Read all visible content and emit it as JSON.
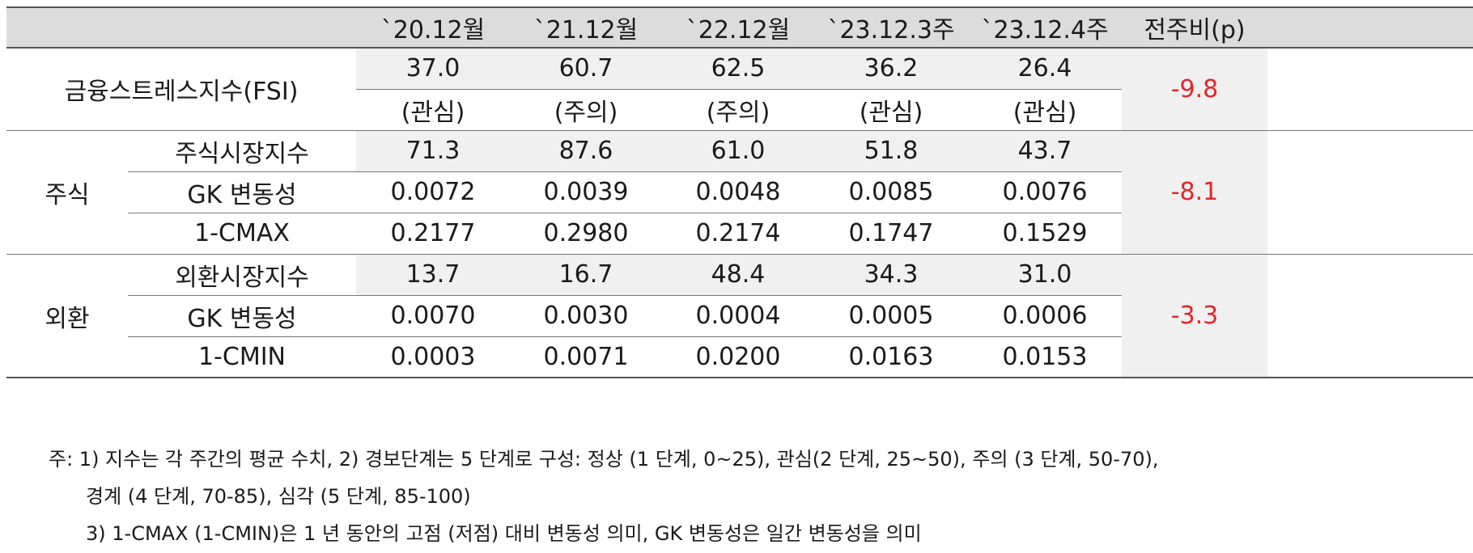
{
  "header": {
    "columns": [
      "`20.12월",
      "`21.12월",
      "`22.12월",
      "`23.12.3주",
      "`23.12.4주"
    ],
    "change_label": "전주비(p)"
  },
  "fsi": {
    "label": "금융스트레스지수(FSI)",
    "values": [
      "37.0",
      "60.7",
      "62.5",
      "36.2",
      "26.4"
    ],
    "levels": [
      "(관심)",
      "(주의)",
      "(주의)",
      "(관심)",
      "(관심)"
    ],
    "change": "-9.8"
  },
  "stock": {
    "group": "주식",
    "change": "-8.1",
    "rows": [
      {
        "label": "주식시장지수",
        "values": [
          "71.3",
          "87.6",
          "61.0",
          "51.8",
          "43.7"
        ]
      },
      {
        "label": "GK 변동성",
        "values": [
          "0.0072",
          "0.0039",
          "0.0048",
          "0.0085",
          "0.0076"
        ]
      },
      {
        "label": "1-CMAX",
        "values": [
          "0.2177",
          "0.2980",
          "0.2174",
          "0.1747",
          "0.1529"
        ]
      }
    ]
  },
  "fx": {
    "group": "외환",
    "change": "-3.3",
    "rows": [
      {
        "label": "외환시장지수",
        "values": [
          "13.7",
          "16.7",
          "48.4",
          "34.3",
          "31.0"
        ]
      },
      {
        "label": "GK 변동성",
        "values": [
          "0.0070",
          "0.0030",
          "0.0004",
          "0.0005",
          "0.0006"
        ]
      },
      {
        "label": "1-CMIN",
        "values": [
          "0.0003",
          "0.0071",
          "0.0200",
          "0.0163",
          "0.0153"
        ]
      }
    ]
  },
  "notes": {
    "line1": "주: 1) 지수는 각 주간의 평균 수치, 2) 경보단계는 5 단계로 구성: 정상 (1 단계, 0~25), 관심(2 단계, 25~50), 주의 (3 단계, 50-70),",
    "line2": "경계 (4 단계, 70-85), 심각 (5 단계, 85-100)",
    "line3": "3) 1-CMAX (1-CMIN)은 1 년 동안의 고점 (저점) 대비 변동성 의미, GK 변동성은 일간 변동성을 의미"
  },
  "colors": {
    "header_bg": "#dcdcdc",
    "shade_bg": "#f0f0f0",
    "negative": "#e0262b"
  }
}
